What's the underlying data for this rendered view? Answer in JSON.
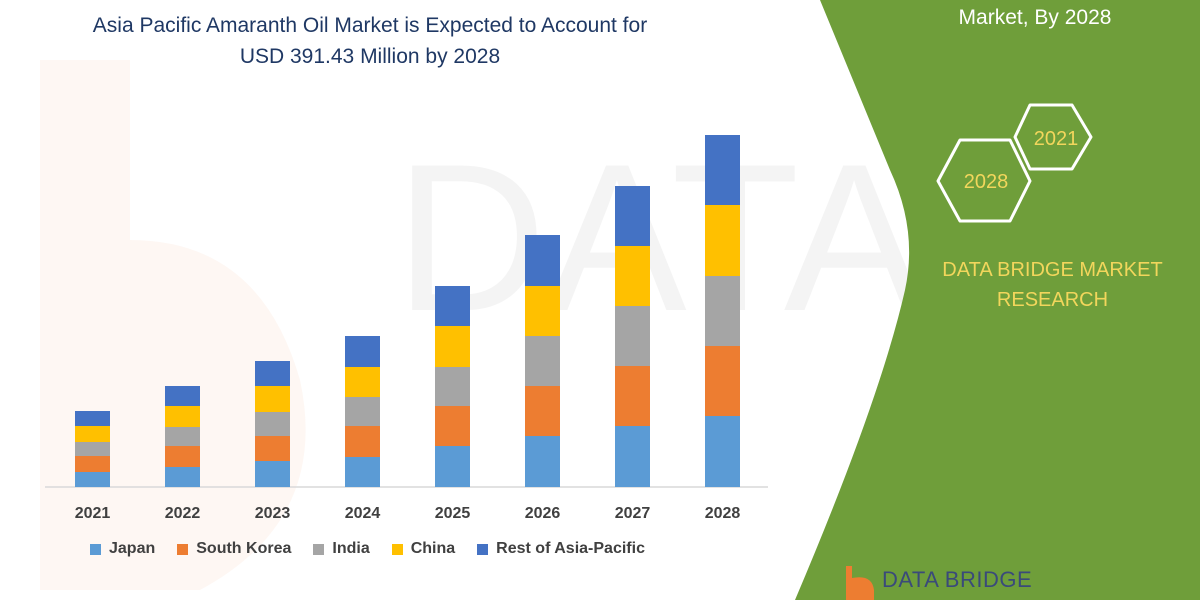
{
  "header": {
    "title_line1": "Asia Pacific Amaranth Oil Market is Expected to Account for",
    "title_line2": "USD 391.43 Million by 2028"
  },
  "panel": {
    "top_text": "Market, By 2028",
    "hex_years": [
      "2021",
      "2028"
    ],
    "brand": "DATA BRIDGE MARKET RESEARCH",
    "logo_text": "DATA BRIDGE",
    "color": "#6f9e3a"
  },
  "watermark": "DATABRIDGE",
  "chart_data": {
    "type": "bar",
    "stacked": true,
    "categories": [
      "2021",
      "2022",
      "2023",
      "2024",
      "2025",
      "2026",
      "2027",
      "2028"
    ],
    "series": [
      {
        "name": "Japan",
        "color": "#5b9bd5",
        "values": [
          15,
          20,
          26,
          30,
          41,
          51,
          61,
          71
        ]
      },
      {
        "name": "South Korea",
        "color": "#ed7d31",
        "values": [
          16,
          21,
          25,
          31,
          40,
          50,
          60,
          70
        ]
      },
      {
        "name": "India",
        "color": "#a5a5a5",
        "values": [
          14,
          19,
          24,
          29,
          39,
          50,
          60,
          70
        ]
      },
      {
        "name": "China",
        "color": "#ffc000",
        "values": [
          16,
          21,
          26,
          30,
          41,
          50,
          60,
          71
        ]
      },
      {
        "name": "Rest of Asia-Pacific",
        "color": "#4472c4",
        "values": [
          15,
          20,
          25,
          31,
          40,
          51,
          60,
          70
        ]
      }
    ],
    "title": "",
    "xlabel": "",
    "ylabel": "",
    "grid": false,
    "y_axis_shown": false,
    "legend": "bottom"
  }
}
